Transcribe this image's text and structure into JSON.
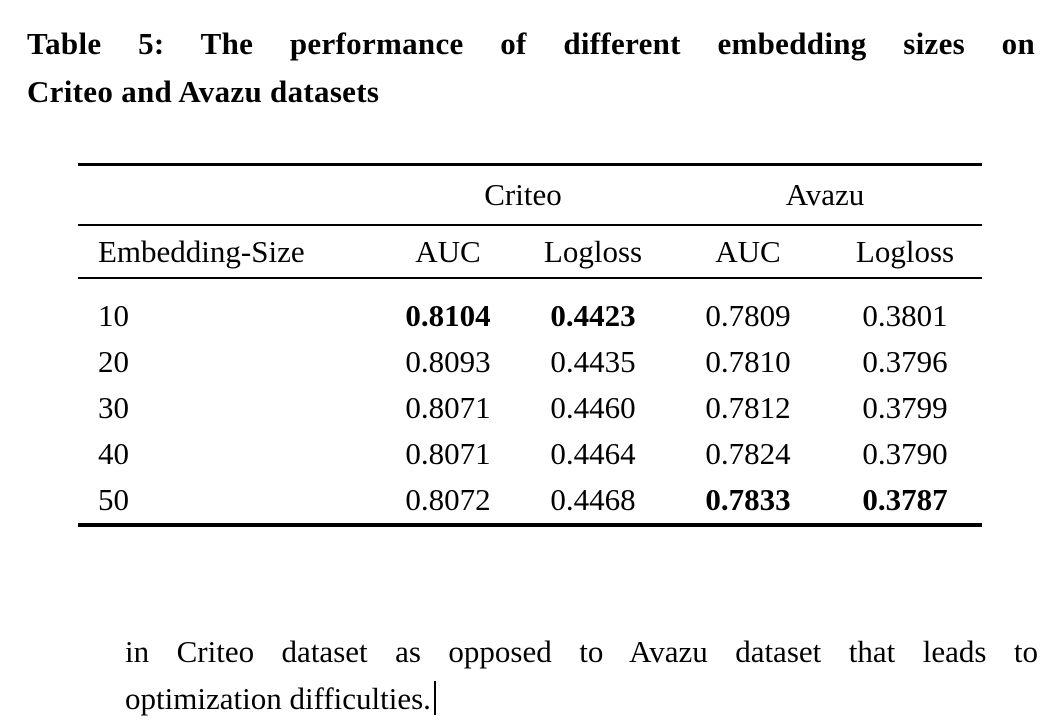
{
  "page": {
    "background_color": "#ffffff",
    "text_color": "#000000"
  },
  "caption": {
    "line1": "Table 5: The performance of different embedding sizes on",
    "line2": "Criteo and Avazu datasets"
  },
  "table": {
    "group_headers": [
      {
        "label": "Criteo"
      },
      {
        "label": "Avazu"
      }
    ],
    "columns": [
      "Embedding-Size",
      "AUC",
      "Logloss",
      "AUC",
      "Logloss"
    ],
    "rows": [
      {
        "cells": [
          "10",
          "0.8104",
          "0.4423",
          "0.7809",
          "0.3801"
        ],
        "bold": [
          1,
          2
        ]
      },
      {
        "cells": [
          "20",
          "0.8093",
          "0.4435",
          "0.7810",
          "0.3796"
        ],
        "bold": []
      },
      {
        "cells": [
          "30",
          "0.8071",
          "0.4460",
          "0.7812",
          "0.3799"
        ],
        "bold": []
      },
      {
        "cells": [
          "40",
          "0.8071",
          "0.4464",
          "0.7824",
          "0.3790"
        ],
        "bold": []
      },
      {
        "cells": [
          "50",
          "0.8072",
          "0.4468",
          "0.7833",
          "0.3787"
        ],
        "bold": [
          3,
          4
        ]
      }
    ]
  },
  "paragraph": {
    "line1": "in Criteo dataset as opposed to Avazu dataset that leads to",
    "line2": "optimization difficulties."
  },
  "cursor": {
    "visible": true
  },
  "chart_data": {
    "type": "table",
    "title": "Table 5: The performance of different embedding sizes on Criteo and Avazu datasets",
    "categories": [
      10,
      20,
      30,
      40,
      50
    ],
    "category_label": "Embedding-Size",
    "series": [
      {
        "name": "Criteo AUC",
        "values": [
          0.8104,
          0.8093,
          0.8071,
          0.8071,
          0.8072
        ]
      },
      {
        "name": "Criteo Logloss",
        "values": [
          0.4423,
          0.4435,
          0.446,
          0.4464,
          0.4468
        ]
      },
      {
        "name": "Avazu AUC",
        "values": [
          0.7809,
          0.781,
          0.7812,
          0.7824,
          0.7833
        ]
      },
      {
        "name": "Avazu Logloss",
        "values": [
          0.3801,
          0.3796,
          0.3799,
          0.379,
          0.3787
        ]
      }
    ],
    "bold_best": [
      "Criteo AUC @10",
      "Criteo Logloss @10",
      "Avazu AUC @50",
      "Avazu Logloss @50"
    ]
  }
}
